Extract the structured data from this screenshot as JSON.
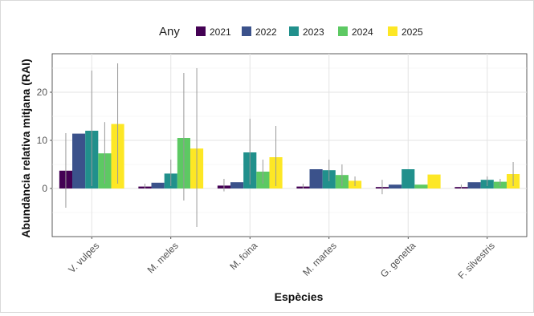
{
  "chart_data": {
    "type": "bar",
    "xlabel": "Espècies",
    "ylabel": "Abundància relativa mitjana (RAI)",
    "legend_title": "Any",
    "legend_position": "top",
    "grid": true,
    "ylim": [
      -10,
      28
    ],
    "yticks": [
      0,
      10,
      20
    ],
    "categories": [
      "V. vulpes",
      "M. meles",
      "M. foina",
      "M. martes",
      "G. genetta",
      "F. silvestris"
    ],
    "series": [
      {
        "name": "2021",
        "color": "#440154",
        "values": [
          3.7,
          0.4,
          0.6,
          0.4,
          0.3,
          0.3
        ],
        "err_low": [
          -4.0,
          0.0,
          -0.6,
          0.0,
          -1.2,
          0.0
        ],
        "err_high": [
          11.5,
          1.0,
          2.0,
          1.0,
          1.8,
          0.8
        ]
      },
      {
        "name": "2022",
        "color": "#3b528b",
        "values": [
          11.4,
          1.2,
          1.3,
          4.0,
          0.8,
          1.3
        ],
        "err_low": [
          null,
          null,
          null,
          null,
          null,
          null
        ],
        "err_high": [
          null,
          null,
          null,
          null,
          null,
          null
        ]
      },
      {
        "name": "2023",
        "color": "#21908c",
        "values": [
          12.0,
          3.1,
          7.5,
          3.8,
          4.0,
          1.8
        ],
        "err_low": [
          0.5,
          0.5,
          0.8,
          1.5,
          null,
          0.5
        ],
        "err_high": [
          24.5,
          6.0,
          14.5,
          6.0,
          null,
          2.5
        ]
      },
      {
        "name": "2024",
        "color": "#5dc963",
        "values": [
          7.3,
          10.5,
          3.5,
          2.8,
          0.8,
          1.4
        ],
        "err_low": [
          1.0,
          -2.5,
          1.0,
          0.5,
          null,
          0.5
        ],
        "err_high": [
          13.8,
          24.0,
          6.0,
          5.0,
          null,
          2.0
        ]
      },
      {
        "name": "2025",
        "color": "#fde725",
        "values": [
          13.4,
          8.3,
          6.5,
          1.6,
          2.9,
          3.0
        ],
        "err_low": [
          1.0,
          -8.0,
          0.5,
          0.5,
          null,
          0.5
        ],
        "err_high": [
          26.0,
          25.0,
          13.0,
          2.5,
          null,
          5.5
        ]
      }
    ]
  }
}
